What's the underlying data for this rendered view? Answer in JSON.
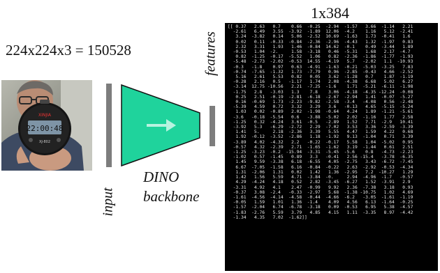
{
  "input": {
    "size_label": "224x224x3 = 150528",
    "axis_label": "input",
    "photo": {
      "description_icon": "person-holding-stopwatch-icon",
      "watch_brand": "XINJIA",
      "watch_display": "22:00:48",
      "watch_model": "XJ-802"
    }
  },
  "backbone": {
    "label_line1": "DINO",
    "label_line2": "backbone",
    "arrow_icon": "arrow-right-icon",
    "color": "#1fd39c"
  },
  "features": {
    "axis_label": "features",
    "dims_label": "1x384"
  },
  "matrix": {
    "lines": [
      "[[ 0.37   2.63   0.7    0.66  -0.25  -2.94  -1.57   3.66  -1.14   2.21",
      "  -2.61   6.49   3.55  -3.92  -1.89  12.06  -4.2    1.16   5.12  -2.41",
      "   3.24  -3.82   0.14   5.06  -2.52  10.69  -1.63   1.73  -0.41   1.6",
      "   0.02   0.11  -0.33  -0.84  -2.36  -2.96  -4.43   1.32  -1.97   0.83",
      "   2.32   3.31   1.93   1.46  -0.84  14.62  -0.1    0.49  -3.44   1.89",
      "  -0.53   1.04  -2.     1.58  -3.18   0.46  -5.31   1.68   2.17  -4.7",
      "   0.82  -1.25  -0.17  -5.52   1.06   0.82  -2.36  -1.86  -1.77  -1.93",
      "  -5.48  -2.73  -2.02  -0.53  14.55  -4.19   5.7   -2.02   1.1  -10.93",
      "  -0.3   -1.8    0.97   0.63  -4.91  -1.63  -0.21  -5.03  -3.25   7.83",
      "  -0.74  -7.65  -1.32   1.73  -7.79   0.96  -2.85  -0.43   4.66  -2.52",
      "   5.16   2.61   5.53   0.82   0.05   3.62  -1.28   0.7    1.87  -1.19",
      "  -0.28   2.16   0.5   -1.17   1.74   2.08  -4.38   6.68   5.02   6.27",
      "  -3.14  12.75 -10.56   2.21  -7.25  -1.6    1.71  -5.21  -6.11  -1.98",
      "  -1.75   2.8   -3.03   1.3    7.8    3.06  -4.18  -4.35 -12.24  -0.08",
      "   0.25   2.51  -0.19  -2.81  -6.18  -2.67  -2.94   1.41  -0.07  -5.27",
      "   0.16  -0.69   1.73  -2.23  -9.82  -2.58  -3.4   -4.08   0.56  -2.48",
      "  -5.39   4.59   0.72   3.32   3.29   3.6   -0.13   4.65  -5.15  -5.24",
      "   1.03   0.02  -0.89   2.02  -1.98  -0.64   4.24   1.89  -1.21  -5.61",
      "  -3.6   -0.18  -5.54   0.6   -3.88  -5.02   2.02  -1.16   1.77   2.58",
      "  -1.25   0.32  -4.24   3.61  -0.5   -2.89   1.52   7.71  -2.9   10.41",
      "  -3.92   5.3   -6.29  -2.72   2.29  -7.02   3.53   3.36  -2.59  -3.39",
      "   1.41   5.     2.18  -2.36   3.39   5.55   4.47   1.59   4.22   0.68",
      "   1.92  -0.12  -3.52  -2.86   1.18  -1.92   9.13  -1.04   0.71   3.39",
      "  -3.89   4.02  -4.32   2.2   -0.22  -0.17   5.58   1.04  -5.02   0.95",
      "  -0.57   4.32  -2.39   2.71  -1.65  -1.62   3.19  -1.44   0.61   2.51",
      "  -1.25  -3.23  -0.2  -15.94  -3.31  -5.45  -5.6    0.8   -4.73  -2.23",
      "  -1.02   0.57  -1.45   0.89   3.3   -0.41   2.56 -15.4   -3.78  -6.35",
      "   1.45   9.59  -3.38   6.18  -6.55   4.05  -2.75   3.43  -6.72  -7.45",
      "   6.67  -7.05  -1.58   6.16  -0.84  -0.22   2.63  -2.92  -0.53  -4.34",
      "   1.31  -2.06   1.31   0.02   1.42   1.36  -2.95   7.2  -10.27   1.29",
      "   1.42   1.56   5.59   4.71  -3.84  -0.     2.94  -4.96  -1.7   -0.57",
      "   4.29  -4.24   4.18   0.52   2.82  -3.45  -6.27   1.52  -3.91   2.9",
      "  -3.31   4.92   4.1    2.47  -0.99   9.92   2.36  -7.38   3.18   0.93",
      "  -0.37   3.08  -2.4   -0.33  -2.97   5.68  -1.38 -10.75   1.02   4.69",
      "  -1.61  -4.56  -4.14  -4.58  -0.44  -4.66  -6.2   -3.05  -1.61  -1.19",
      "  -0.05   1.59   1.01   1.36  -1.4    4.09   4.56   6.13  -1.64  -0.25",
      "  -1.57  -2.04   6.74  -6.78  -3.18   0.09  -0.53   6.95   5.38  -4.57",
      "  -1.83  -2.76   5.59   3.79   4.85   4.15   1.11  -3.35   8.97  -4.42",
      "  -1.34   4.35   7.02  -1.62]]"
    ]
  }
}
